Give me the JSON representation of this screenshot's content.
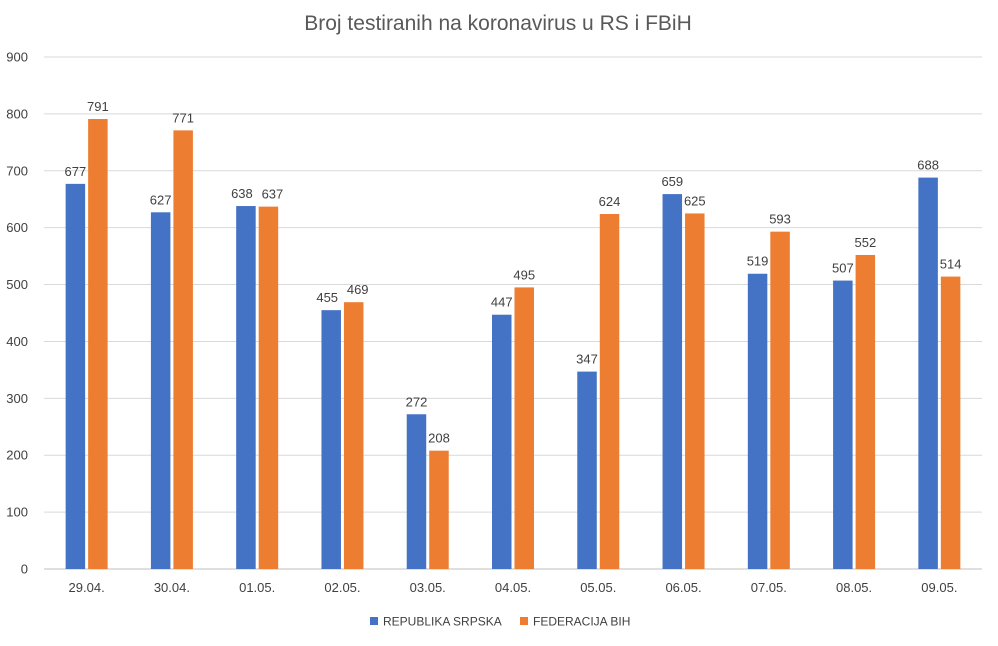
{
  "chart_data": {
    "type": "bar",
    "title": "Broj testiranih na koronavirus u RS i FBiH",
    "xlabel": "",
    "ylabel": "",
    "ylim": [
      0,
      900
    ],
    "yticks": [
      0,
      100,
      200,
      300,
      400,
      500,
      600,
      700,
      800,
      900
    ],
    "grid": true,
    "legend_position": "bottom",
    "categories": [
      "29.04.",
      "30.04.",
      "01.05.",
      "02.05.",
      "03.05.",
      "04.05.",
      "05.05.",
      "06.05.",
      "07.05.",
      "08.05.",
      "09.05."
    ],
    "series": [
      {
        "name": "REPUBLIKA SRPSKA",
        "color": "#4472c4",
        "values": [
          677,
          627,
          638,
          455,
          272,
          447,
          347,
          659,
          519,
          507,
          688
        ]
      },
      {
        "name": "FEDERACIJA BIH",
        "color": "#ed7d31",
        "values": [
          791,
          771,
          637,
          469,
          208,
          495,
          624,
          625,
          593,
          552,
          514
        ]
      }
    ]
  }
}
